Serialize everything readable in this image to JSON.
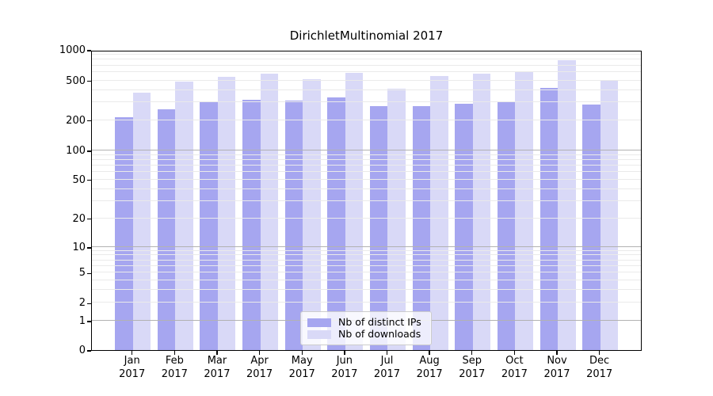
{
  "colors": {
    "bar_distinct_ips": "#a6a6f0",
    "bar_downloads": "#d9d9f7",
    "grid_major": "#b2b2b2",
    "grid_minor": "#eaeaea",
    "axis": "#000000",
    "text": "#000000",
    "legend_border": "#cccccc"
  },
  "chart_data": {
    "type": "bar",
    "title": "DirichletMultinomial 2017",
    "categories": [
      "Jan 2017",
      "Feb 2017",
      "Mar 2017",
      "Apr 2017",
      "May 2017",
      "Jun 2017",
      "Jul 2017",
      "Aug 2017",
      "Sep 2017",
      "Oct 2017",
      "Nov 2017",
      "Dec 2017"
    ],
    "series": [
      {
        "name": "Nb of distinct IPs",
        "color": "#a6a6f0",
        "values": [
          215,
          255,
          310,
          320,
          315,
          340,
          275,
          275,
          290,
          305,
          420,
          285
        ]
      },
      {
        "name": "Nb of downloads",
        "color": "#d9d9f7",
        "values": [
          375,
          490,
          540,
          580,
          510,
          590,
          415,
          550,
          580,
          620,
          790,
          500
        ]
      }
    ],
    "xlabel": "",
    "ylabel": "",
    "ylim": [
      0,
      1000
    ],
    "yscale": {
      "type": "symlog-like",
      "ticks": [
        0,
        1,
        2,
        5,
        10,
        20,
        50,
        100,
        200,
        500,
        1000
      ],
      "major_gridlines": [
        1,
        10,
        100
      ],
      "minor_gridlines": [
        2,
        3,
        4,
        5,
        6,
        7,
        8,
        9,
        20,
        30,
        40,
        50,
        60,
        70,
        80,
        90,
        200,
        300,
        400,
        500,
        600,
        700,
        800,
        900
      ],
      "anchors": [
        [
          0,
          0
        ],
        [
          1,
          0.0978
        ],
        [
          2,
          0.1572
        ],
        [
          5,
          0.2576
        ],
        [
          10,
          0.3435
        ],
        [
          20,
          0.4386
        ],
        [
          50,
          0.568
        ],
        [
          100,
          0.6645
        ],
        [
          200,
          0.7662
        ],
        [
          500,
          0.8983
        ],
        [
          1000,
          1.0
        ]
      ]
    },
    "grid": "on",
    "grid_above_bars": true,
    "legend_position": "lower center"
  }
}
